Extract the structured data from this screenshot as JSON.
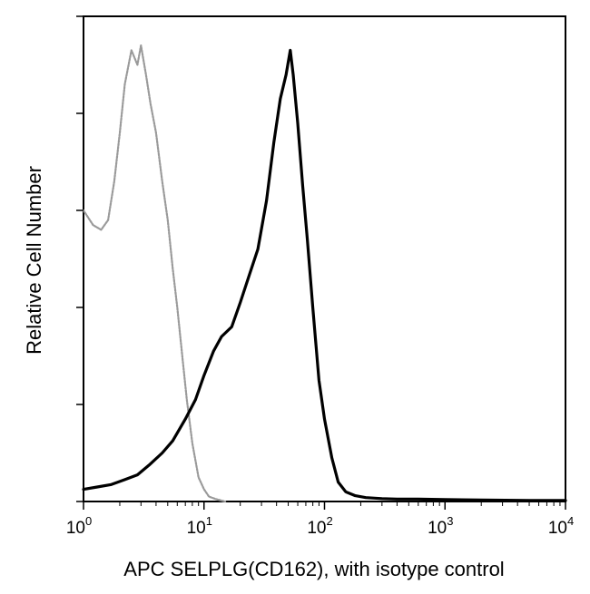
{
  "chart_data": {
    "type": "line",
    "title": "",
    "xlabel": "APC SELPLG(CD162), with isotype control",
    "ylabel": "Relative Cell Number",
    "x_scale": "log",
    "xlim": [
      1,
      10000
    ],
    "ylim": [
      0,
      100
    ],
    "grid": false,
    "x_ticks": [
      {
        "value": 1,
        "base": "10",
        "exp": "0"
      },
      {
        "value": 10,
        "base": "10",
        "exp": "1"
      },
      {
        "value": 100,
        "base": "10",
        "exp": "2"
      },
      {
        "value": 1000,
        "base": "10",
        "exp": "3"
      },
      {
        "value": 10000,
        "base": "10",
        "exp": "4"
      }
    ],
    "y_ticks": [
      0,
      20,
      40,
      60,
      80,
      100
    ],
    "series": [
      {
        "name": "",
        "color": "#9a9a9a",
        "x": [
          1.0,
          1.2,
          1.4,
          1.6,
          1.8,
          2.0,
          2.2,
          2.5,
          2.8,
          3.0,
          3.3,
          3.6,
          4.0,
          4.5,
          5.0,
          5.5,
          6.0,
          6.6,
          7.2,
          8.0,
          9.0,
          10.0,
          11.0,
          12.5,
          15.0
        ],
        "values": [
          60,
          57,
          56,
          58,
          66,
          76,
          86,
          93,
          90,
          94,
          88,
          82,
          76,
          66,
          58,
          48,
          40,
          30,
          21,
          12,
          5,
          2.5,
          1.0,
          0.5,
          0
        ]
      },
      {
        "name": "",
        "color": "#000000",
        "x": [
          1.0,
          1.3,
          1.7,
          2.2,
          2.8,
          3.5,
          4.5,
          5.5,
          7.0,
          8.5,
          10.0,
          12.0,
          14.0,
          17.0,
          20.0,
          24.0,
          28.0,
          33.0,
          38.0,
          43.0,
          48.0,
          52.0,
          55.0,
          60.0,
          66.0,
          72.0,
          80.0,
          90.0,
          100.0,
          115.0,
          130.0,
          150.0,
          180.0,
          220.0,
          300.0,
          400.0,
          600.0,
          1000.0,
          2000.0,
          5000.0,
          10000.0
        ],
        "values": [
          2.5,
          3.0,
          3.5,
          4.5,
          5.5,
          7.5,
          10,
          12.5,
          17,
          21,
          26,
          31,
          34,
          36,
          41,
          47,
          52,
          62,
          74,
          83,
          88,
          93,
          88,
          78,
          65,
          54,
          40,
          25,
          17,
          9,
          4,
          2,
          1.2,
          0.8,
          0.6,
          0.5,
          0.5,
          0.4,
          0.3,
          0.2,
          0.2
        ]
      }
    ]
  }
}
